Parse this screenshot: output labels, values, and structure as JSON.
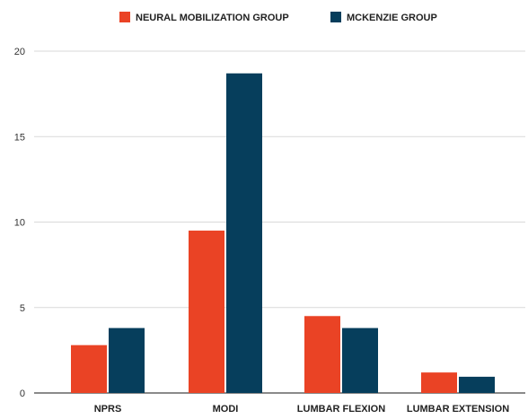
{
  "chart_data": {
    "type": "bar",
    "categories": [
      "NPRS",
      "MODI",
      "LUMBAR FLEXION",
      "LUMBAR EXTENSION"
    ],
    "series": [
      {
        "name": "NEURAL MOBILIZATION GROUP",
        "color": "#ea4325",
        "values": [
          2.8,
          9.5,
          4.5,
          1.2
        ]
      },
      {
        "name": "MCKENZIE GROUP",
        "color": "#063e5c",
        "values": [
          3.8,
          18.7,
          3.8,
          0.95
        ]
      }
    ],
    "yticks": [
      "0",
      "5",
      "10",
      "15",
      "20"
    ],
    "ylim": [
      0,
      20
    ],
    "grid": true,
    "legend_position": "top-center",
    "title": "",
    "xlabel": "",
    "ylabel": ""
  }
}
